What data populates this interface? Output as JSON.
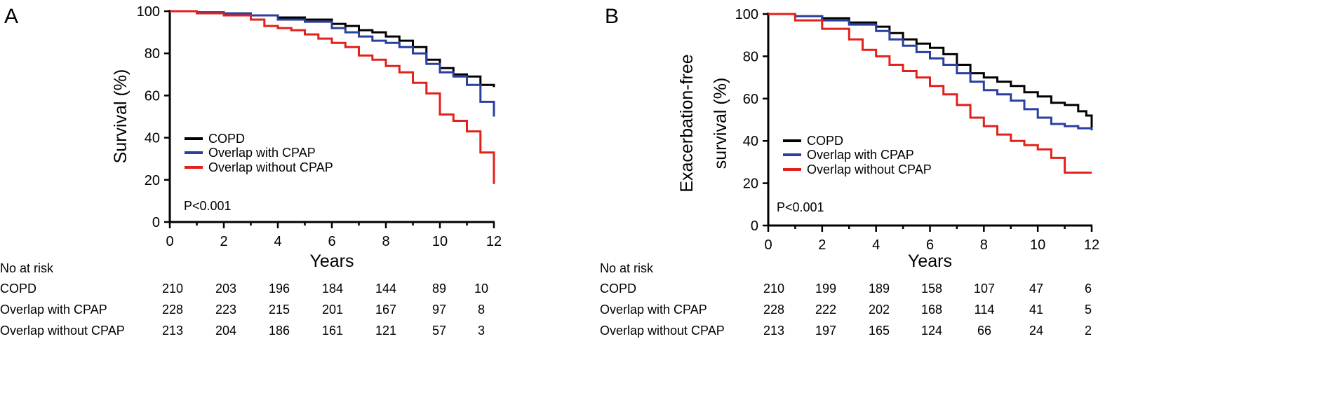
{
  "chart_data": [
    {
      "panel": "A",
      "type": "line",
      "xlabel": "Years",
      "ylabel": "Survival (%)",
      "xlim": [
        0,
        12
      ],
      "ylim": [
        0,
        100
      ],
      "xticks": [
        "0",
        "2",
        "4",
        "6",
        "8",
        "10",
        "12"
      ],
      "yticks": [
        "0",
        "20",
        "40",
        "60",
        "80",
        "100"
      ],
      "pvalue": "P<0.001",
      "legend_position": "lower-left",
      "series": [
        {
          "name": "COPD",
          "color": "#000000",
          "x": [
            0,
            1,
            2,
            3,
            4,
            5,
            6,
            6.5,
            7,
            7.5,
            8,
            8.5,
            9,
            9.5,
            10,
            10.5,
            11,
            11.5,
            12
          ],
          "y": [
            100,
            99.5,
            99,
            98,
            97,
            96,
            94,
            93,
            91,
            90,
            88,
            86,
            83,
            77,
            73,
            70,
            69,
            65,
            64
          ]
        },
        {
          "name": "Overlap with CPAP",
          "color": "#2a3f9e",
          "x": [
            0,
            1,
            2,
            3,
            4,
            5,
            6,
            6.5,
            7,
            7.5,
            8,
            8.5,
            9,
            9.5,
            10,
            10.5,
            11,
            11.5,
            12
          ],
          "y": [
            100,
            99.5,
            99,
            98,
            96,
            95,
            92,
            90,
            88,
            86,
            85,
            83,
            80,
            75,
            71,
            69,
            65,
            57,
            50
          ]
        },
        {
          "name": "Overlap without CPAP",
          "color": "#e3211c",
          "x": [
            0,
            1,
            2,
            3,
            3.5,
            4,
            4.5,
            5,
            5.5,
            6,
            6.5,
            7,
            7.5,
            8,
            8.5,
            9,
            9.5,
            10,
            10.5,
            11,
            11.5,
            12
          ],
          "y": [
            100,
            99,
            98,
            96,
            93,
            92,
            91,
            89,
            87,
            85,
            83,
            79,
            77,
            74,
            71,
            66,
            61,
            51,
            48,
            43,
            33,
            18
          ]
        }
      ],
      "risk_table": {
        "header": "No at risk",
        "rows": [
          {
            "label": "COPD",
            "values": [
              "210",
              "203",
              "196",
              "184",
              "144",
              "89",
              "10"
            ]
          },
          {
            "label": "Overlap with CPAP",
            "values": [
              "228",
              "223",
              "215",
              "201",
              "167",
              "97",
              "8"
            ]
          },
          {
            "label": "Overlap without CPAP",
            "values": [
              "213",
              "204",
              "186",
              "161",
              "121",
              "57",
              "3"
            ]
          }
        ]
      }
    },
    {
      "panel": "B",
      "type": "line",
      "xlabel": "Years",
      "ylabel_lines": [
        "Exacerbation-free",
        "survival (%)"
      ],
      "xlim": [
        0,
        12
      ],
      "ylim": [
        0,
        100
      ],
      "xticks": [
        "0",
        "2",
        "4",
        "6",
        "8",
        "10",
        "12"
      ],
      "yticks": [
        "0",
        "20",
        "40",
        "60",
        "80",
        "100"
      ],
      "pvalue": "P<0.001",
      "legend_position": "lower-left",
      "series": [
        {
          "name": "COPD",
          "color": "#000000",
          "x": [
            0,
            1,
            2,
            3,
            4,
            4.5,
            5,
            5.5,
            6,
            6.5,
            7,
            7.5,
            8,
            8.5,
            9,
            9.5,
            10,
            10.5,
            11,
            11.5,
            11.8,
            12
          ],
          "y": [
            100,
            99,
            98,
            96,
            94,
            91,
            88,
            86,
            84,
            81,
            76,
            72,
            70,
            68,
            66,
            63,
            61,
            58,
            57,
            54,
            52,
            46
          ]
        },
        {
          "name": "Overlap with CPAP",
          "color": "#2a3f9e",
          "x": [
            0,
            1,
            2,
            3,
            4,
            4.5,
            5,
            5.5,
            6,
            6.5,
            7,
            7.5,
            8,
            8.5,
            9,
            9.5,
            10,
            10.5,
            11,
            11.5,
            12
          ],
          "y": [
            100,
            99,
            97,
            95,
            92,
            88,
            85,
            82,
            79,
            76,
            72,
            68,
            64,
            62,
            59,
            55,
            51,
            48,
            47,
            46,
            45
          ]
        },
        {
          "name": "Overlap without CPAP",
          "color": "#e3211c",
          "x": [
            0,
            1,
            2,
            3,
            3.5,
            4,
            4.5,
            5,
            5.5,
            6,
            6.5,
            7,
            7.5,
            8,
            8.5,
            9,
            9.5,
            10,
            10.5,
            11,
            12
          ],
          "y": [
            100,
            97,
            93,
            88,
            83,
            80,
            76,
            73,
            70,
            66,
            62,
            57,
            51,
            47,
            43,
            40,
            38,
            36,
            32,
            25,
            25
          ]
        }
      ],
      "risk_table": {
        "header": "No at risk",
        "rows": [
          {
            "label": "COPD",
            "values": [
              "210",
              "199",
              "189",
              "158",
              "107",
              "47",
              "6"
            ]
          },
          {
            "label": "Overlap with CPAP",
            "values": [
              "228",
              "222",
              "202",
              "168",
              "114",
              "41",
              "5"
            ]
          },
          {
            "label": "Overlap without CPAP",
            "values": [
              "213",
              "197",
              "165",
              "124",
              "66",
              "24",
              "2"
            ]
          }
        ]
      }
    }
  ]
}
